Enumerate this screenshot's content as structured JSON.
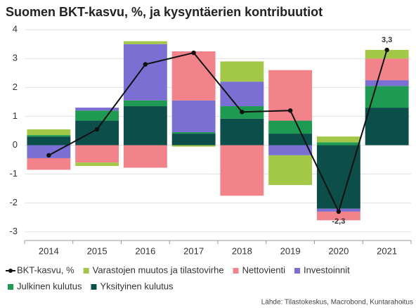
{
  "chart_data": {
    "type": "bar",
    "title": "Suomen BKT-kasvu, %, ja kysyntäerien kontribuutiot",
    "source": "Lähde: Tilastokeskus, Macrobond, Kuntarahoitus",
    "categories": [
      "2014",
      "2015",
      "2016",
      "2017",
      "2018",
      "2019",
      "2020",
      "2021"
    ],
    "stacked": true,
    "ylim": [
      -3.3,
      4.2
    ],
    "yticks": [
      -3,
      -2,
      -1,
      0,
      1,
      2,
      3,
      4
    ],
    "grid": true,
    "series": [
      {
        "name": "Yksityinen kulutus",
        "color": "#0c4f4a",
        "values": [
          0.3,
          0.85,
          1.35,
          0.4,
          0.92,
          0.4,
          -2.2,
          1.3
        ]
      },
      {
        "name": "Julkinen kulutus",
        "color": "#1e9a52",
        "values": [
          0.05,
          0.35,
          0.2,
          0.05,
          0.43,
          0.45,
          0.1,
          0.75
        ]
      },
      {
        "name": "Investoinnit",
        "color": "#7b6fd3",
        "values": [
          -0.45,
          0.1,
          1.95,
          1.1,
          0.85,
          -0.35,
          -0.1,
          0.2
        ]
      },
      {
        "name": "Nettovienti",
        "color": "#f2838a",
        "values": [
          -0.4,
          -0.6,
          -0.78,
          1.7,
          -1.75,
          1.75,
          -0.3,
          0.75
        ]
      },
      {
        "name": "Varastojen muutos ja tilastovirhe",
        "color": "#a3c847",
        "values": [
          0.2,
          -0.12,
          0.1,
          -0.05,
          0.7,
          -1.03,
          0.2,
          0.3
        ]
      },
      {
        "name": "BKT-kasvu, %",
        "type": "line",
        "color": "#111111",
        "values": [
          -0.35,
          0.55,
          2.8,
          3.2,
          1.15,
          1.2,
          -2.3,
          3.3
        ],
        "value_labels": [
          null,
          null,
          null,
          null,
          null,
          null,
          "-2,3",
          "3,3"
        ]
      }
    ]
  }
}
